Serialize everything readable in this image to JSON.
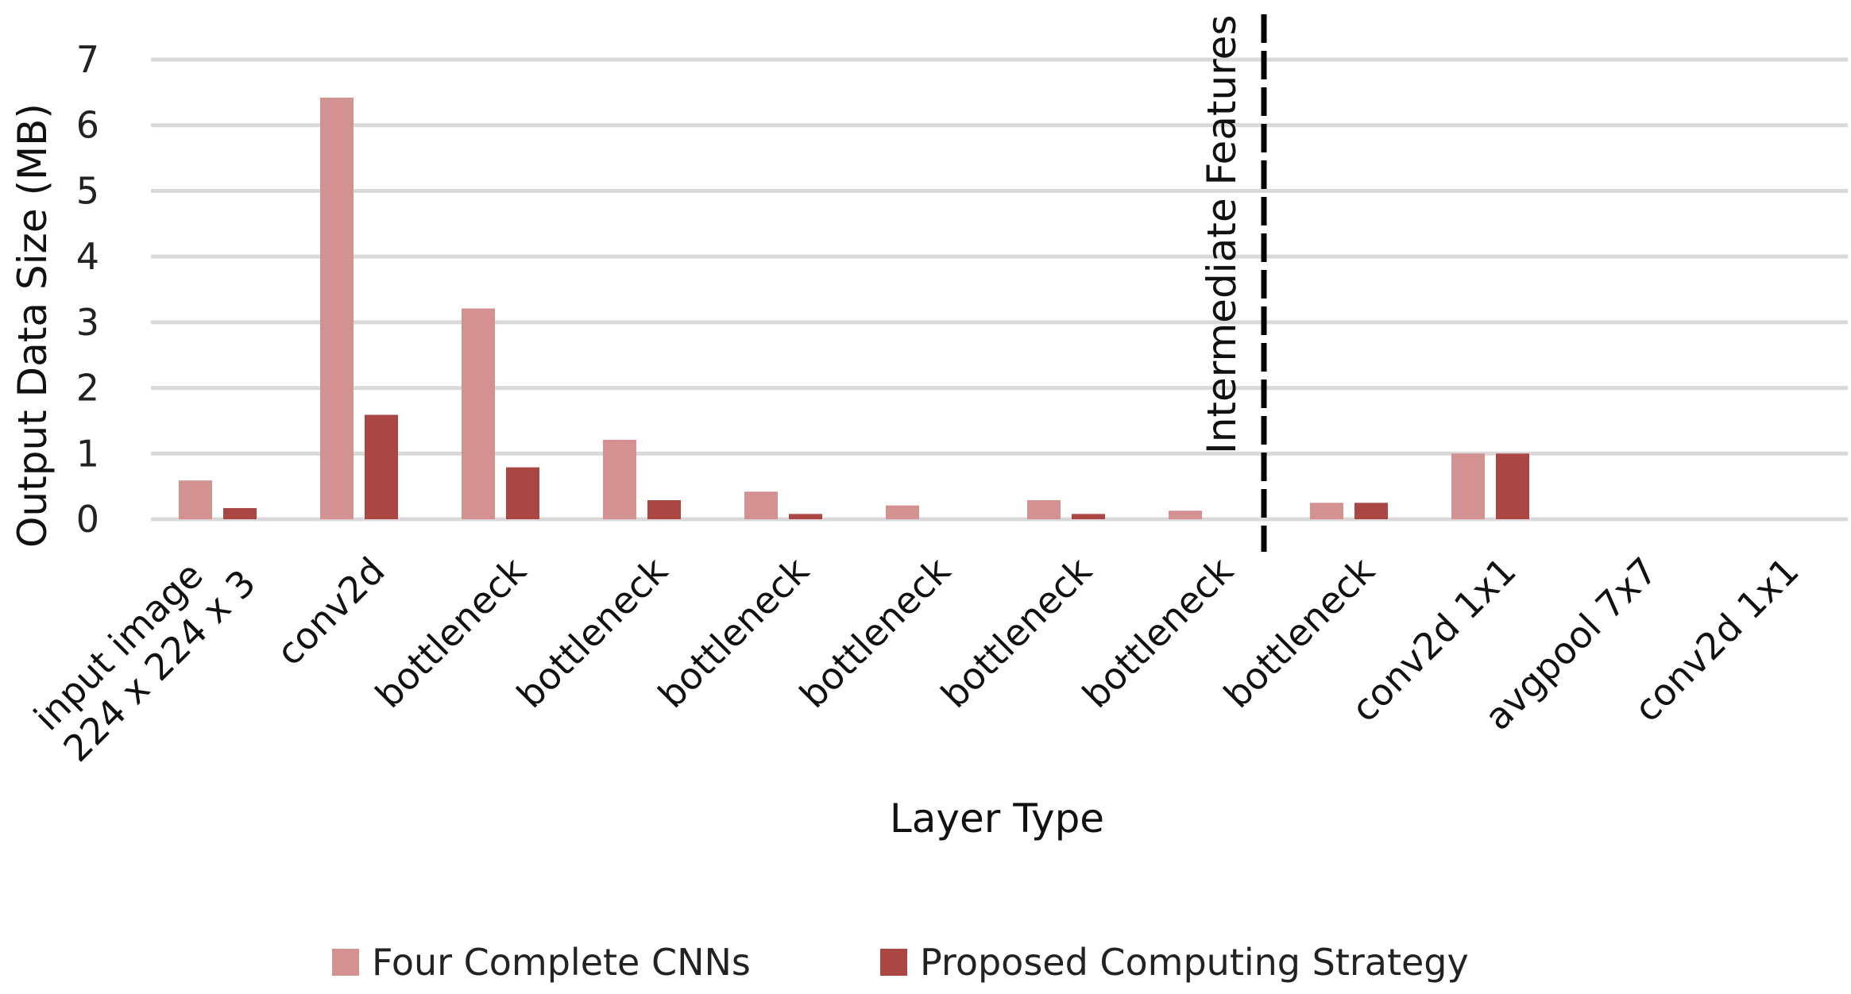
{
  "chart_data": {
    "type": "bar",
    "title": "",
    "xlabel": "Layer Type",
    "ylabel": "Output Data Size (MB)",
    "ylim": [
      0,
      7
    ],
    "yticks": [
      "0",
      "1",
      "2",
      "3",
      "4",
      "5",
      "6",
      "7"
    ],
    "grid": true,
    "legend_position": "bottom",
    "categories": [
      [
        "input image",
        "224 x 224 x 3"
      ],
      [
        "conv2d"
      ],
      [
        "bottleneck"
      ],
      [
        "bottleneck"
      ],
      [
        "bottleneck"
      ],
      [
        "bottleneck"
      ],
      [
        "bottleneck"
      ],
      [
        "bottleneck"
      ],
      [
        "bottleneck"
      ],
      [
        "conv2d 1x1"
      ],
      [
        "avgpool 7x7"
      ],
      [
        "conv2d 1x1"
      ]
    ],
    "series": [
      {
        "name": "Four Complete CNNs",
        "color": "#D39191",
        "values": [
          0.59,
          6.42,
          3.21,
          1.21,
          0.42,
          0.21,
          0.29,
          0.13,
          0.25,
          1.0,
          0,
          0
        ]
      },
      {
        "name": "Proposed Computing Strategy",
        "color": "#AA4644",
        "values": [
          0.17,
          1.59,
          0.79,
          0.29,
          0.08,
          0,
          0.08,
          0,
          0.25,
          1.0,
          0,
          0
        ]
      }
    ],
    "annotation": {
      "text": "Intermediate Features",
      "position_after_category_index": 7,
      "style": "dashed vertical line"
    }
  }
}
